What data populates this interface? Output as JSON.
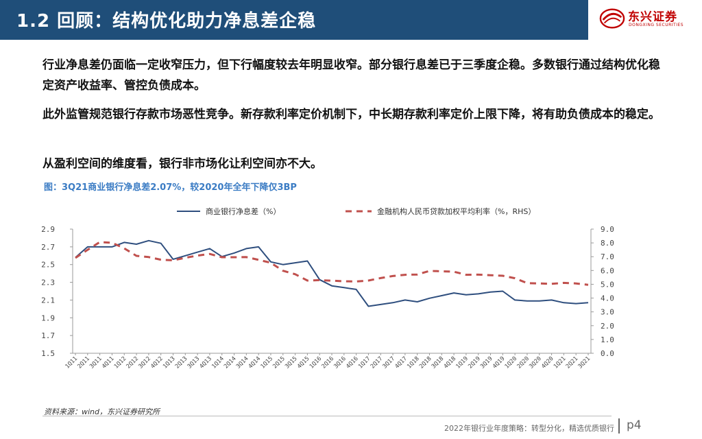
{
  "header": {
    "title": "1.2 回顾：结构优化助力净息差企稳"
  },
  "logo": {
    "name_cn": "东兴证券",
    "name_en": "DONGXING SECURITIES",
    "color": "#c00000"
  },
  "body": {
    "paragraphs": [
      "行业净息差仍面临一定收窄压力，但下行幅度较去年明显收窄。部分银行息差已于三季度企稳。多数银行通过结构优化稳定资产收益率、管控负债成本。",
      "此外监管规范银行存款市场恶性竞争。新存款利率定价机制下，中长期存款利率定价上限下降，将有助负债成本的稳定。",
      "从盈利空间的维度看，银行非市场化让利空间亦不大。"
    ]
  },
  "figure": {
    "caption": "图：3Q21商业银行净息差2.07%，较2020年全年下降仅3BP",
    "source": "资料来源：wind，东兴证券研究所"
  },
  "footer": {
    "text": "2022年银行业年度策略：转型分化，精选优质银行",
    "page": "p4"
  },
  "chart_data": {
    "type": "line",
    "categories": [
      "1Q11",
      "2Q11",
      "3Q11",
      "4Q11",
      "1Q12",
      "2Q12",
      "3Q12",
      "4Q12",
      "1Q13",
      "2Q13",
      "3Q13",
      "4Q13",
      "1Q14",
      "2Q14",
      "3Q14",
      "4Q14",
      "1Q15",
      "2Q15",
      "3Q15",
      "4Q15",
      "1Q16",
      "2Q16",
      "3Q16",
      "4Q16",
      "1Q17",
      "2Q17",
      "3Q17",
      "4Q17",
      "1Q18",
      "2Q18",
      "3Q18",
      "4Q18",
      "1Q19",
      "2Q19",
      "3Q19",
      "4Q19",
      "1Q20",
      "2Q20",
      "3Q20",
      "4Q20",
      "1Q21",
      "2Q21",
      "3Q21"
    ],
    "y_left": {
      "min": 1.5,
      "max": 2.9,
      "step": 0.2,
      "tick_labels": [
        "1.5",
        "1.7",
        "1.9",
        "2.1",
        "2.3",
        "2.5",
        "2.7",
        "2.9"
      ]
    },
    "y_right": {
      "min": 0,
      "max": 9,
      "step": 1,
      "tick_labels": [
        "0.0",
        "1.0",
        "2.0",
        "3.0",
        "4.0",
        "5.0",
        "6.0",
        "7.0",
        "8.0",
        "9.0"
      ]
    },
    "series": [
      {
        "name": "商业银行净息差（%）",
        "axis": "left",
        "style": "solid",
        "color": "#2e4e7e",
        "values": [
          2.58,
          2.7,
          2.7,
          2.7,
          2.75,
          2.73,
          2.77,
          2.74,
          2.56,
          2.6,
          2.64,
          2.68,
          2.59,
          2.63,
          2.68,
          2.7,
          2.53,
          2.5,
          2.52,
          2.54,
          2.33,
          2.26,
          2.24,
          2.22,
          2.03,
          2.05,
          2.07,
          2.1,
          2.08,
          2.12,
          2.15,
          2.18,
          2.16,
          2.17,
          2.19,
          2.2,
          2.1,
          2.09,
          2.09,
          2.1,
          2.07,
          2.06,
          2.07
        ]
      },
      {
        "name": "金融机构人民币贷款加权平均利率（%，RHS）",
        "axis": "right",
        "style": "dashed",
        "color": "#c0504d",
        "values": [
          6.91,
          7.5,
          8.06,
          8.01,
          7.61,
          7.06,
          6.97,
          6.78,
          6.74,
          6.92,
          7.08,
          7.2,
          6.96,
          6.96,
          6.97,
          6.77,
          6.56,
          5.98,
          5.73,
          5.27,
          5.3,
          5.26,
          5.22,
          5.2,
          5.27,
          5.45,
          5.6,
          5.69,
          5.71,
          5.97,
          5.94,
          5.91,
          5.69,
          5.7,
          5.66,
          5.62,
          5.44,
          5.08,
          5.06,
          5.03,
          5.1,
          5.06,
          4.96
        ]
      }
    ],
    "legend_position": "top",
    "grid": false
  }
}
